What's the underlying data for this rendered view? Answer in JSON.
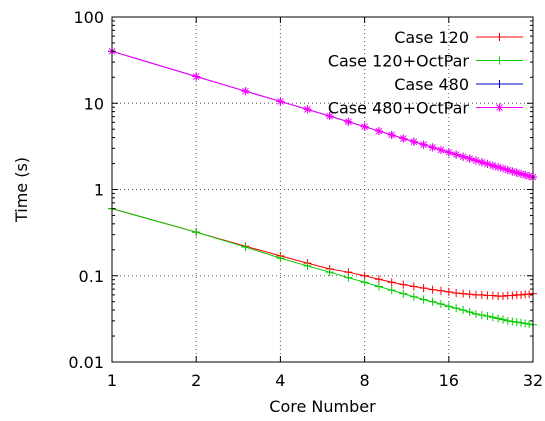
{
  "chart_data": {
    "type": "line",
    "title": "",
    "xlabel": "Core Number",
    "ylabel": "Time (s)",
    "x_scale": "log2",
    "y_scale": "log10",
    "xlim": [
      1,
      32
    ],
    "ylim": [
      0.01,
      100
    ],
    "x_ticks": [
      1,
      2,
      4,
      8,
      16,
      32
    ],
    "x_tick_labels": [
      "1",
      "2",
      "4",
      "8",
      "16",
      "32"
    ],
    "y_ticks": [
      0.01,
      0.1,
      1,
      10,
      100
    ],
    "y_tick_labels": [
      "0.01",
      "0.1",
      "1",
      "10",
      "100"
    ],
    "grid": true,
    "legend_position": "top-right",
    "x": [
      1,
      2,
      3,
      4,
      5,
      6,
      7,
      8,
      9,
      10,
      11,
      12,
      13,
      14,
      15,
      16,
      17,
      18,
      19,
      20,
      21,
      22,
      23,
      24,
      25,
      26,
      27,
      28,
      29,
      30,
      31,
      32
    ],
    "series": [
      {
        "name": "Case 120",
        "color": "#ff0000",
        "marker": "plus",
        "values": [
          0.6,
          0.32,
          0.22,
          0.17,
          0.14,
          0.12,
          0.11,
          0.1,
          0.091,
          0.084,
          0.079,
          0.075,
          0.072,
          0.069,
          0.067,
          0.065,
          0.063,
          0.062,
          0.061,
          0.06,
          0.06,
          0.059,
          0.059,
          0.058,
          0.058,
          0.059,
          0.059,
          0.06,
          0.06,
          0.061,
          0.061,
          0.062
        ]
      },
      {
        "name": "Case 120+OctPar",
        "color": "#00cc00",
        "marker": "plus",
        "values": [
          0.6,
          0.32,
          0.215,
          0.16,
          0.13,
          0.11,
          0.095,
          0.084,
          0.075,
          0.068,
          0.062,
          0.057,
          0.053,
          0.05,
          0.047,
          0.044,
          0.042,
          0.04,
          0.038,
          0.036,
          0.035,
          0.034,
          0.033,
          0.032,
          0.031,
          0.03,
          0.0295,
          0.029,
          0.0285,
          0.028,
          0.0275,
          0.027
        ]
      },
      {
        "name": "Case 480",
        "color": "#0000cc",
        "marker": "plus",
        "values": [
          40,
          20.4,
          13.8,
          10.5,
          8.5,
          7.1,
          6.1,
          5.35,
          4.76,
          4.29,
          3.9,
          3.58,
          3.31,
          3.08,
          2.87,
          2.7,
          2.54,
          2.4,
          2.28,
          2.17,
          2.07,
          1.98,
          1.89,
          1.82,
          1.75,
          1.68,
          1.62,
          1.57,
          1.52,
          1.47,
          1.43,
          1.39
        ]
      },
      {
        "name": "Case 480+OctPar",
        "color": "#ff00ff",
        "marker": "star",
        "values": [
          40,
          20.4,
          13.8,
          10.5,
          8.5,
          7.1,
          6.1,
          5.35,
          4.76,
          4.29,
          3.9,
          3.58,
          3.31,
          3.08,
          2.87,
          2.7,
          2.54,
          2.4,
          2.28,
          2.17,
          2.07,
          1.98,
          1.89,
          1.82,
          1.75,
          1.68,
          1.62,
          1.57,
          1.52,
          1.47,
          1.43,
          1.39
        ]
      }
    ]
  }
}
